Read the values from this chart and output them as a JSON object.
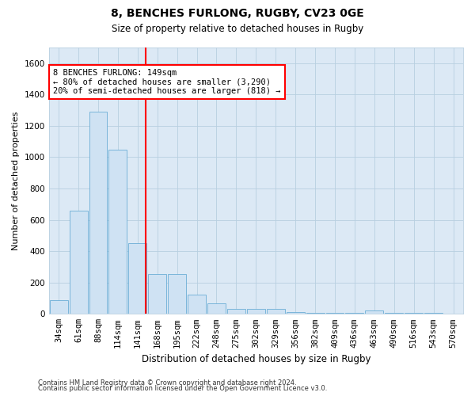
{
  "title": "8, BENCHES FURLONG, RUGBY, CV23 0GE",
  "subtitle": "Size of property relative to detached houses in Rugby",
  "xlabel": "Distribution of detached houses by size in Rugby",
  "ylabel": "Number of detached properties",
  "footer1": "Contains HM Land Registry data © Crown copyright and database right 2024.",
  "footer2": "Contains public sector information licensed under the Open Government Licence v3.0.",
  "categories": [
    "34sqm",
    "61sqm",
    "88sqm",
    "114sqm",
    "141sqm",
    "168sqm",
    "195sqm",
    "222sqm",
    "248sqm",
    "275sqm",
    "302sqm",
    "329sqm",
    "356sqm",
    "382sqm",
    "409sqm",
    "436sqm",
    "463sqm",
    "490sqm",
    "516sqm",
    "543sqm",
    "570sqm"
  ],
  "values": [
    90,
    660,
    1290,
    1050,
    450,
    255,
    255,
    125,
    65,
    30,
    30,
    30,
    10,
    5,
    5,
    5,
    20,
    5,
    5,
    5,
    3
  ],
  "bar_color": "#cfe2f3",
  "bar_edge_color": "#6baed6",
  "background_color": "#ffffff",
  "plot_bg_color": "#dce9f5",
  "grid_color": "#b8cfe0",
  "red_line_x": 4.42,
  "annotation_line1": "8 BENCHES FURLONG: 149sqm",
  "annotation_line2": "← 80% of detached houses are smaller (3,290)",
  "annotation_line3": "20% of semi-detached houses are larger (818) →",
  "ylim": [
    0,
    1700
  ],
  "yticks": [
    0,
    200,
    400,
    600,
    800,
    1000,
    1200,
    1400,
    1600
  ],
  "title_fontsize": 10,
  "subtitle_fontsize": 8.5,
  "ylabel_fontsize": 8,
  "xlabel_fontsize": 8.5,
  "tick_fontsize": 7.5,
  "annotation_fontsize": 7.5,
  "footer_fontsize": 6
}
